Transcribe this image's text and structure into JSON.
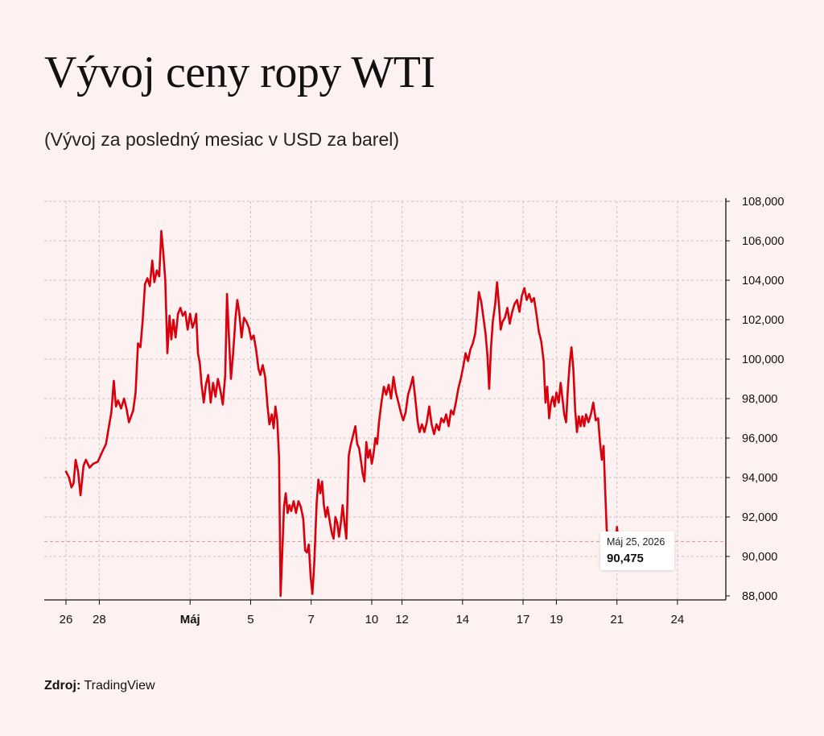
{
  "title": "Vývoj ceny ropy WTI",
  "subtitle": "(Vývoj za posledný mesiac v USD za barel)",
  "source": {
    "label": "Zdroj:",
    "value": "TradingView"
  },
  "tooltip": {
    "date": "Máj 25, 2026",
    "value": "90,475"
  },
  "colors": {
    "line": "#d9000d",
    "background": "#fdf2f1",
    "grid": "#c9c2c2",
    "current": "#ef8a8a"
  },
  "chart_data": {
    "type": "line",
    "xlim": [
      0,
      21
    ],
    "ylim": [
      88000,
      108000
    ],
    "y_ticks": [
      "88,000",
      "90,000",
      "92,000",
      "94,000",
      "96,000",
      "98,000",
      "100,000",
      "102,000",
      "104,000",
      "106,000",
      "108,000"
    ],
    "y_tick_values": [
      88000,
      90000,
      92000,
      94000,
      96000,
      98000,
      100000,
      102000,
      104000,
      106000,
      108000
    ],
    "x_ticks": [
      {
        "x": 0,
        "label": "26",
        "bold": false
      },
      {
        "x": 1.1,
        "label": "28",
        "bold": false
      },
      {
        "x": 4.1,
        "label": "Máj",
        "bold": true
      },
      {
        "x": 6.1,
        "label": "5",
        "bold": false
      },
      {
        "x": 8.1,
        "label": "7",
        "bold": false
      },
      {
        "x": 10.1,
        "label": "10",
        "bold": false
      },
      {
        "x": 11.1,
        "label": "12",
        "bold": false
      },
      {
        "x": 13.1,
        "label": "14",
        "bold": false
      },
      {
        "x": 15.1,
        "label": "17",
        "bold": false
      },
      {
        "x": 16.2,
        "label": "19",
        "bold": false
      },
      {
        "x": 18.2,
        "label": "21",
        "bold": false
      },
      {
        "x": 20.2,
        "label": "24",
        "bold": false
      }
    ],
    "current_value": 90475,
    "series": [
      {
        "points": [
          [
            0.0,
            94300
          ],
          [
            0.1,
            94000
          ],
          [
            0.18,
            93500
          ],
          [
            0.25,
            93700
          ],
          [
            0.32,
            94900
          ],
          [
            0.4,
            94300
          ],
          [
            0.48,
            93100
          ],
          [
            0.58,
            94600
          ],
          [
            0.66,
            94900
          ],
          [
            0.78,
            94500
          ],
          [
            0.9,
            94700
          ],
          [
            1.05,
            94800
          ],
          [
            1.2,
            95300
          ],
          [
            1.32,
            95700
          ],
          [
            1.42,
            96600
          ],
          [
            1.5,
            97300
          ],
          [
            1.58,
            98900
          ],
          [
            1.65,
            97600
          ],
          [
            1.72,
            97900
          ],
          [
            1.82,
            97500
          ],
          [
            1.92,
            98000
          ],
          [
            2.0,
            97500
          ],
          [
            2.08,
            96800
          ],
          [
            2.15,
            97100
          ],
          [
            2.22,
            97400
          ],
          [
            2.3,
            98300
          ],
          [
            2.38,
            100800
          ],
          [
            2.46,
            100600
          ],
          [
            2.53,
            101900
          ],
          [
            2.61,
            103800
          ],
          [
            2.69,
            104100
          ],
          [
            2.77,
            103700
          ],
          [
            2.85,
            105000
          ],
          [
            2.92,
            103900
          ],
          [
            3.0,
            104500
          ],
          [
            3.08,
            104200
          ],
          [
            3.15,
            106500
          ],
          [
            3.22,
            105300
          ],
          [
            3.28,
            104000
          ],
          [
            3.35,
            100300
          ],
          [
            3.42,
            102200
          ],
          [
            3.48,
            101000
          ],
          [
            3.55,
            102000
          ],
          [
            3.62,
            101100
          ],
          [
            3.7,
            102300
          ],
          [
            3.78,
            102600
          ],
          [
            3.86,
            102200
          ],
          [
            3.94,
            102400
          ],
          [
            4.02,
            101500
          ],
          [
            4.1,
            102300
          ],
          [
            4.18,
            101600
          ],
          [
            4.25,
            101900
          ],
          [
            4.3,
            102300
          ],
          [
            4.36,
            100300
          ],
          [
            4.42,
            99800
          ],
          [
            4.48,
            98700
          ],
          [
            4.55,
            97800
          ],
          [
            4.62,
            98700
          ],
          [
            4.7,
            99200
          ],
          [
            4.78,
            97800
          ],
          [
            4.86,
            98800
          ],
          [
            4.94,
            98100
          ],
          [
            5.02,
            99000
          ],
          [
            5.1,
            98400
          ],
          [
            5.18,
            97700
          ],
          [
            5.26,
            99200
          ],
          [
            5.32,
            103300
          ],
          [
            5.38,
            101200
          ],
          [
            5.45,
            99000
          ],
          [
            5.52,
            100300
          ],
          [
            5.6,
            102100
          ],
          [
            5.66,
            103000
          ],
          [
            5.72,
            102400
          ],
          [
            5.8,
            101100
          ],
          [
            5.88,
            102100
          ],
          [
            5.96,
            101900
          ],
          [
            6.04,
            101600
          ],
          [
            6.12,
            101000
          ],
          [
            6.2,
            101200
          ],
          [
            6.28,
            100500
          ],
          [
            6.36,
            99500
          ],
          [
            6.42,
            99200
          ],
          [
            6.5,
            99700
          ],
          [
            6.58,
            99100
          ],
          [
            6.66,
            97600
          ],
          [
            6.72,
            96700
          ],
          [
            6.8,
            97200
          ],
          [
            6.86,
            96500
          ],
          [
            6.92,
            97600
          ],
          [
            6.98,
            96900
          ],
          [
            7.04,
            95000
          ],
          [
            7.09,
            88000
          ],
          [
            7.14,
            90000
          ],
          [
            7.2,
            92500
          ],
          [
            7.26,
            93200
          ],
          [
            7.32,
            92200
          ],
          [
            7.38,
            92600
          ],
          [
            7.44,
            92300
          ],
          [
            7.52,
            92800
          ],
          [
            7.6,
            92200
          ],
          [
            7.68,
            92800
          ],
          [
            7.76,
            92500
          ],
          [
            7.84,
            91900
          ],
          [
            7.9,
            90300
          ],
          [
            7.96,
            90200
          ],
          [
            8.02,
            90600
          ],
          [
            8.08,
            89000
          ],
          [
            8.14,
            88100
          ],
          [
            8.2,
            89600
          ],
          [
            8.28,
            92700
          ],
          [
            8.34,
            93900
          ],
          [
            8.4,
            93200
          ],
          [
            8.46,
            93800
          ],
          [
            8.52,
            92600
          ],
          [
            8.58,
            92000
          ],
          [
            8.64,
            92500
          ],
          [
            8.7,
            91900
          ],
          [
            8.78,
            91200
          ],
          [
            8.84,
            90900
          ],
          [
            8.9,
            92000
          ],
          [
            8.96,
            91700
          ],
          [
            9.02,
            91000
          ],
          [
            9.08,
            91700
          ],
          [
            9.14,
            92600
          ],
          [
            9.2,
            91700
          ],
          [
            9.26,
            90900
          ],
          [
            9.34,
            95100
          ],
          [
            9.4,
            95600
          ],
          [
            9.48,
            96100
          ],
          [
            9.56,
            96600
          ],
          [
            9.62,
            95700
          ],
          [
            9.68,
            95500
          ],
          [
            9.74,
            94900
          ],
          [
            9.8,
            94200
          ],
          [
            9.86,
            93800
          ],
          [
            9.92,
            95800
          ],
          [
            9.98,
            95000
          ],
          [
            10.04,
            95400
          ],
          [
            10.1,
            94700
          ],
          [
            10.16,
            95200
          ],
          [
            10.22,
            96000
          ],
          [
            10.28,
            95700
          ],
          [
            10.34,
            96800
          ],
          [
            10.42,
            97800
          ],
          [
            10.5,
            98600
          ],
          [
            10.58,
            98200
          ],
          [
            10.66,
            98700
          ],
          [
            10.74,
            98000
          ],
          [
            10.82,
            99100
          ],
          [
            10.9,
            98300
          ],
          [
            10.98,
            97800
          ],
          [
            11.06,
            97300
          ],
          [
            11.14,
            96900
          ],
          [
            11.22,
            97300
          ],
          [
            11.3,
            98200
          ],
          [
            11.38,
            98600
          ],
          [
            11.46,
            99100
          ],
          [
            11.54,
            98000
          ],
          [
            11.62,
            96800
          ],
          [
            11.68,
            96300
          ],
          [
            11.76,
            96700
          ],
          [
            11.84,
            96300
          ],
          [
            11.92,
            96800
          ],
          [
            12.0,
            97600
          ],
          [
            12.08,
            96700
          ],
          [
            12.16,
            96200
          ],
          [
            12.24,
            96700
          ],
          [
            12.32,
            96400
          ],
          [
            12.4,
            97000
          ],
          [
            12.48,
            96800
          ],
          [
            12.56,
            97200
          ],
          [
            12.64,
            96600
          ],
          [
            12.72,
            97400
          ],
          [
            12.8,
            97200
          ],
          [
            12.88,
            97800
          ],
          [
            12.96,
            98500
          ],
          [
            13.04,
            99000
          ],
          [
            13.12,
            99600
          ],
          [
            13.2,
            100300
          ],
          [
            13.28,
            99900
          ],
          [
            13.36,
            100500
          ],
          [
            13.44,
            100800
          ],
          [
            13.52,
            101300
          ],
          [
            13.58,
            102300
          ],
          [
            13.64,
            103400
          ],
          [
            13.72,
            102900
          ],
          [
            13.8,
            102000
          ],
          [
            13.86,
            101300
          ],
          [
            13.92,
            100200
          ],
          [
            13.98,
            98500
          ],
          [
            14.04,
            100600
          ],
          [
            14.1,
            101900
          ],
          [
            14.18,
            102800
          ],
          [
            14.24,
            103900
          ],
          [
            14.3,
            102800
          ],
          [
            14.36,
            101500
          ],
          [
            14.42,
            101900
          ],
          [
            14.5,
            102100
          ],
          [
            14.58,
            102600
          ],
          [
            14.66,
            101800
          ],
          [
            14.74,
            102400
          ],
          [
            14.82,
            102800
          ],
          [
            14.9,
            103000
          ],
          [
            14.98,
            102400
          ],
          [
            15.06,
            103200
          ],
          [
            15.14,
            103600
          ],
          [
            15.22,
            103000
          ],
          [
            15.3,
            103300
          ],
          [
            15.38,
            102900
          ],
          [
            15.46,
            103100
          ],
          [
            15.54,
            102300
          ],
          [
            15.62,
            101400
          ],
          [
            15.7,
            100900
          ],
          [
            15.78,
            99900
          ],
          [
            15.84,
            97800
          ],
          [
            15.9,
            98600
          ],
          [
            15.96,
            97000
          ],
          [
            16.02,
            97800
          ],
          [
            16.08,
            98100
          ],
          [
            16.14,
            97600
          ],
          [
            16.2,
            98300
          ],
          [
            16.28,
            97800
          ],
          [
            16.34,
            98800
          ],
          [
            16.4,
            98000
          ],
          [
            16.46,
            97200
          ],
          [
            16.52,
            96800
          ],
          [
            16.58,
            98500
          ],
          [
            16.64,
            99800
          ],
          [
            16.7,
            100600
          ],
          [
            16.76,
            99500
          ],
          [
            16.82,
            97400
          ],
          [
            16.88,
            96300
          ],
          [
            16.94,
            97100
          ],
          [
            17.0,
            96600
          ],
          [
            17.06,
            97100
          ],
          [
            17.12,
            96600
          ],
          [
            17.18,
            97200
          ],
          [
            17.26,
            96800
          ],
          [
            17.34,
            97200
          ],
          [
            17.42,
            97800
          ],
          [
            17.5,
            96900
          ],
          [
            17.58,
            97000
          ],
          [
            17.64,
            95800
          ],
          [
            17.7,
            94900
          ],
          [
            17.76,
            95600
          ],
          [
            17.8,
            93900
          ],
          [
            17.86,
            91400
          ],
          [
            17.92,
            90700
          ],
          [
            17.98,
            91200
          ],
          [
            18.04,
            90000
          ],
          [
            18.1,
            90300
          ],
          [
            18.16,
            90600
          ],
          [
            18.2,
            91500
          ],
          [
            18.24,
            90900
          ],
          [
            18.28,
            90475
          ]
        ]
      }
    ]
  }
}
